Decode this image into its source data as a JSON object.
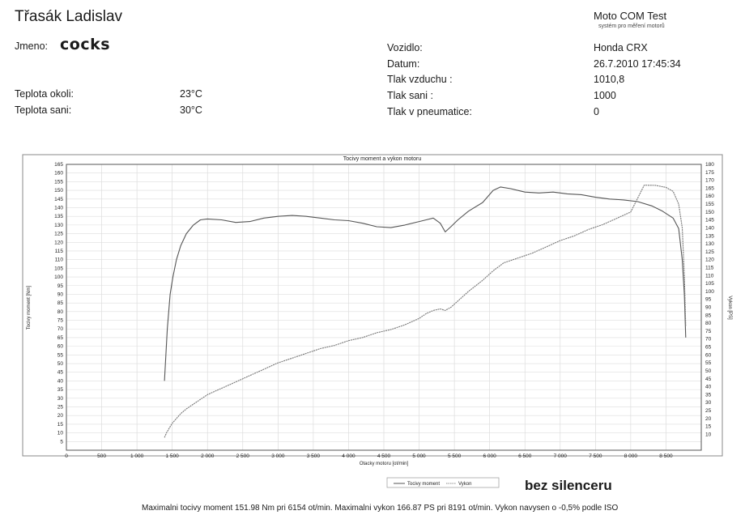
{
  "header": {
    "owner": "Třasák Ladislav",
    "brand": "Moto COM Test",
    "brand_sub": "systém pro měření motorů"
  },
  "fields": {
    "name_label": "Jmeno:",
    "name_value": "cocks",
    "ambient_temp_label": "Teplota okoli:",
    "ambient_temp_value": "23°C",
    "intake_temp_label": "Teplota sani:",
    "intake_temp_value": "30°C",
    "vehicle_label": "Vozidlo:",
    "vehicle_value": "Honda CRX",
    "date_label": "Datum:",
    "date_value": "26.7.2010 17:45:34",
    "air_pressure_label": "Tlak vzduchu :",
    "air_pressure_value": "1010,8",
    "intake_pressure_label": "Tlak sani :",
    "intake_pressure_value": "1000",
    "tire_pressure_label": "Tlak v pneumatice:",
    "tire_pressure_value": "0"
  },
  "handwritten_note": "bez silenceru",
  "summary": "Maximalni tocivy moment 151.98 Nm pri 6154 ot/min.  Maximalni vykon 166.87 PS pri 8191 ot/min.  Vykon navysen o -0,5% podle ISO",
  "chart_data": {
    "type": "line",
    "title": "Tocivy moment a vykon motoru",
    "xlabel": "Otacky motoru [ot/min]",
    "ylabel_left": "Tocivy moment [Nm]",
    "ylabel_right": "Vykon [PS]",
    "xlim": [
      0,
      9000
    ],
    "ylim_left": [
      0,
      165
    ],
    "ylim_right": [
      0,
      180
    ],
    "x_ticks": [
      "0",
      "500",
      "1 000",
      "1 500",
      "2 000",
      "2 500",
      "3 000",
      "3 500",
      "4 000",
      "4 500",
      "5 000",
      "5 500",
      "6 000",
      "6 500",
      "7 000",
      "7 500",
      "8 000",
      "8 500"
    ],
    "y_left_ticks": [
      5,
      10,
      15,
      20,
      25,
      30,
      35,
      40,
      45,
      50,
      55,
      60,
      65,
      70,
      75,
      80,
      85,
      90,
      95,
      100,
      105,
      110,
      115,
      120,
      125,
      130,
      135,
      140,
      145,
      150,
      155,
      160,
      165
    ],
    "y_right_ticks": [
      10,
      15,
      20,
      25,
      30,
      35,
      40,
      45,
      50,
      55,
      60,
      65,
      70,
      75,
      80,
      85,
      90,
      95,
      100,
      105,
      110,
      115,
      120,
      125,
      130,
      135,
      140,
      145,
      150,
      155,
      160,
      165,
      170,
      175,
      180
    ],
    "grid": true,
    "legend_position": "bottom-center",
    "series": [
      {
        "name": "Tocivy moment",
        "axis": "left",
        "color": "#555555",
        "x": [
          1390,
          1430,
          1470,
          1510,
          1560,
          1620,
          1700,
          1800,
          1900,
          2000,
          2200,
          2400,
          2600,
          2800,
          3000,
          3200,
          3400,
          3600,
          3800,
          4000,
          4200,
          4400,
          4600,
          4800,
          5000,
          5100,
          5200,
          5300,
          5370,
          5450,
          5550,
          5700,
          5900,
          6050,
          6154,
          6300,
          6500,
          6700,
          6900,
          7100,
          7300,
          7500,
          7700,
          7900,
          8100,
          8300,
          8450,
          8600,
          8680,
          8730,
          8760,
          8780
        ],
        "values": [
          40,
          70,
          90,
          100,
          110,
          118,
          125,
          130,
          133,
          133.5,
          133,
          131.5,
          132,
          134,
          135,
          135.5,
          135,
          134,
          133,
          132.5,
          131,
          129,
          128.5,
          130,
          132,
          133,
          134,
          131,
          126,
          129,
          133,
          138,
          143,
          150,
          151.98,
          151,
          149,
          148.5,
          149,
          148,
          147.5,
          146,
          145,
          144.5,
          143.5,
          141,
          138,
          134,
          128,
          110,
          90,
          65
        ]
      },
      {
        "name": "Vykon",
        "axis": "right",
        "color": "#777777",
        "x": [
          1390,
          1420,
          1460,
          1500,
          1560,
          1620,
          1700,
          1800,
          1900,
          2000,
          2200,
          2400,
          2600,
          2800,
          3000,
          3200,
          3400,
          3600,
          3800,
          4000,
          4200,
          4400,
          4600,
          4800,
          5000,
          5100,
          5200,
          5300,
          5370,
          5450,
          5550,
          5700,
          5900,
          6050,
          6200,
          6400,
          6600,
          6800,
          7000,
          7200,
          7400,
          7600,
          7800,
          8000,
          8191,
          8350,
          8500,
          8600,
          8680,
          8730,
          8760,
          8780
        ],
        "values": [
          8,
          11,
          14,
          17,
          20,
          23,
          26,
          29,
          32,
          35,
          39,
          43,
          47,
          51,
          55,
          58,
          61,
          64,
          66,
          69,
          71,
          74,
          76,
          79,
          83,
          86,
          88,
          89,
          88,
          90,
          94,
          100,
          107,
          113,
          118,
          121,
          124,
          128,
          132,
          135,
          139,
          142,
          146,
          150,
          166.87,
          166.8,
          165.5,
          163,
          155,
          140,
          110,
          78
        ]
      }
    ]
  }
}
